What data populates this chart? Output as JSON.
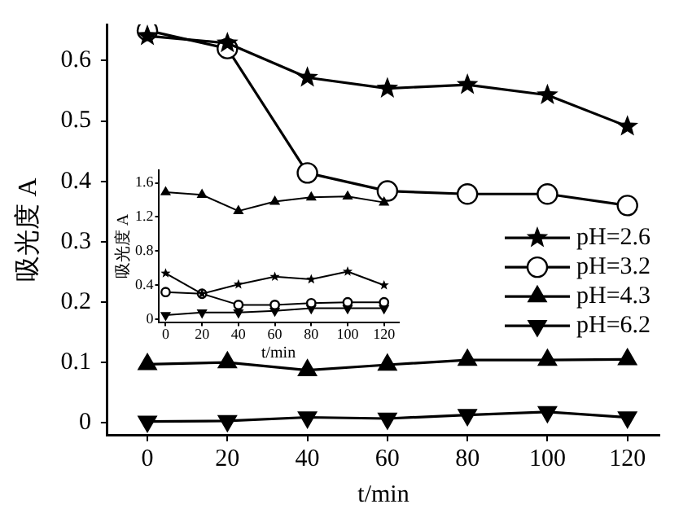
{
  "chart_data": [
    {
      "type": "line",
      "xlabel": "t/min",
      "ylabel": "吸光度 A",
      "x": [
        0,
        20,
        40,
        60,
        80,
        100,
        120
      ],
      "xlim": [
        -10,
        128
      ],
      "xticks": [
        0,
        20,
        40,
        60,
        80,
        100,
        120
      ],
      "ylim": [
        -0.02,
        0.66
      ],
      "yticks": [
        0,
        0.1,
        0.2,
        0.3,
        0.4,
        0.5,
        0.6
      ],
      "grid": false,
      "legend": "right",
      "series": [
        {
          "name": "pH=2.6",
          "color": "#000000",
          "marker": "star",
          "values": [
            0.641,
            0.629,
            0.572,
            0.554,
            0.56,
            0.543,
            0.491
          ]
        },
        {
          "name": "pH=3.2",
          "color": "#000000",
          "marker": "circle",
          "values": [
            0.65,
            0.62,
            0.414,
            0.384,
            0.379,
            0.379,
            0.36
          ]
        },
        {
          "name": "pH=4.3",
          "color": "#000000",
          "marker": "triangle",
          "values": [
            0.097,
            0.1,
            0.087,
            0.096,
            0.104,
            0.104,
            0.105
          ]
        },
        {
          "name": "pH=6.2",
          "color": "#000000",
          "marker": "triangle_down",
          "values": [
            0.002,
            0.003,
            0.009,
            0.007,
            0.013,
            0.018,
            0.009
          ]
        }
      ]
    },
    {
      "type": "line",
      "xlabel": "t/min",
      "ylabel": "吸光度 A",
      "x": [
        0,
        20,
        40,
        60,
        80,
        100,
        120
      ],
      "xlim": [
        -4,
        128
      ],
      "xticks": [
        0,
        20,
        40,
        60,
        80,
        100,
        120
      ],
      "ylim": [
        -0.04,
        1.75
      ],
      "yticks": [
        0,
        0.4,
        0.8,
        1.2,
        1.6
      ],
      "grid": false,
      "legend": false,
      "series": [
        {
          "color": "#000000",
          "marker": "star",
          "values": [
            0.54,
            0.3,
            0.41,
            0.5,
            0.47,
            0.56,
            0.4
          ]
        },
        {
          "color": "#000000",
          "marker": "circle",
          "values": [
            0.32,
            0.3,
            0.17,
            0.17,
            0.19,
            0.2,
            0.2
          ]
        },
        {
          "color": "#000000",
          "marker": "triangle",
          "values": [
            1.49,
            1.46,
            1.27,
            1.38,
            1.43,
            1.44,
            1.37
          ]
        },
        {
          "color": "#000000",
          "marker": "triangle_down",
          "values": [
            0.05,
            0.08,
            0.08,
            0.1,
            0.13,
            0.13,
            0.13
          ]
        }
      ]
    }
  ]
}
